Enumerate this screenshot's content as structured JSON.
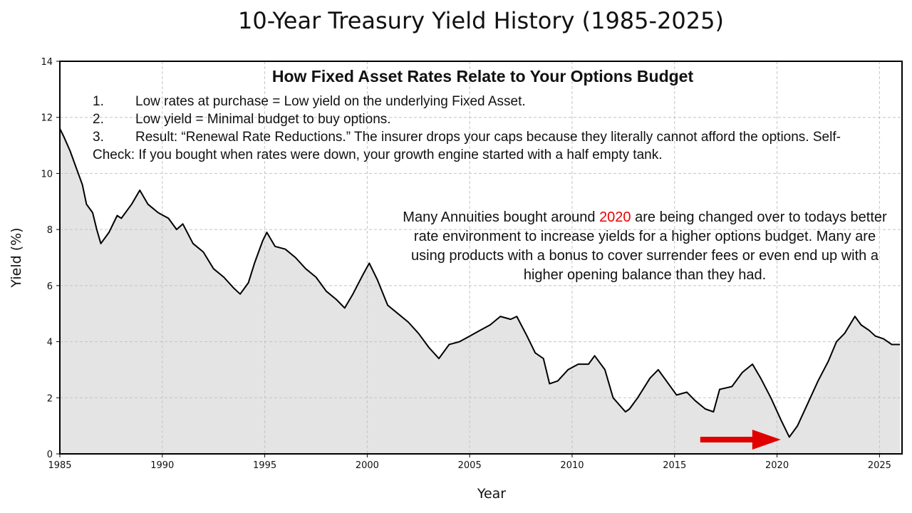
{
  "chart_data": {
    "type": "area",
    "title": "10-Year Treasury Yield History (1985-2025)",
    "xlabel": "Year",
    "ylabel": "Yield (%)",
    "xlim": [
      1985,
      2026.1
    ],
    "ylim": [
      0,
      14
    ],
    "xticks": [
      1985,
      1990,
      1995,
      2000,
      2005,
      2010,
      2015,
      2020,
      2025
    ],
    "yticks": [
      0,
      2,
      4,
      6,
      8,
      10,
      12,
      14
    ],
    "grid": true,
    "series": [
      {
        "name": "10-Year Treasury Yield",
        "line_color": "#000000",
        "fill_color": "#e4e4e4",
        "points": [
          [
            1985.0,
            11.6
          ],
          [
            1985.2,
            11.3
          ],
          [
            1985.5,
            10.8
          ],
          [
            1985.8,
            10.2
          ],
          [
            1986.1,
            9.6
          ],
          [
            1986.3,
            8.9
          ],
          [
            1986.6,
            8.6
          ],
          [
            1986.8,
            8.0
          ],
          [
            1987.0,
            7.5
          ],
          [
            1987.4,
            7.9
          ],
          [
            1987.8,
            8.5
          ],
          [
            1988.0,
            8.4
          ],
          [
            1988.5,
            8.9
          ],
          [
            1988.9,
            9.4
          ],
          [
            1989.3,
            8.9
          ],
          [
            1989.8,
            8.6
          ],
          [
            1990.3,
            8.4
          ],
          [
            1990.7,
            8.0
          ],
          [
            1991.0,
            8.2
          ],
          [
            1991.5,
            7.5
          ],
          [
            1992.0,
            7.2
          ],
          [
            1992.5,
            6.6
          ],
          [
            1993.0,
            6.3
          ],
          [
            1993.5,
            5.9
          ],
          [
            1993.8,
            5.7
          ],
          [
            1994.2,
            6.1
          ],
          [
            1994.5,
            6.8
          ],
          [
            1994.9,
            7.6
          ],
          [
            1995.1,
            7.9
          ],
          [
            1995.5,
            7.4
          ],
          [
            1996.0,
            7.3
          ],
          [
            1996.5,
            7.0
          ],
          [
            1997.0,
            6.6
          ],
          [
            1997.5,
            6.3
          ],
          [
            1998.0,
            5.8
          ],
          [
            1998.5,
            5.5
          ],
          [
            1998.9,
            5.2
          ],
          [
            1999.3,
            5.7
          ],
          [
            1999.8,
            6.4
          ],
          [
            2000.1,
            6.8
          ],
          [
            2000.5,
            6.2
          ],
          [
            2001.0,
            5.3
          ],
          [
            2001.5,
            5.0
          ],
          [
            2002.0,
            4.7
          ],
          [
            2002.5,
            4.3
          ],
          [
            2003.0,
            3.8
          ],
          [
            2003.5,
            3.4
          ],
          [
            2004.0,
            3.9
          ],
          [
            2004.5,
            4.0
          ],
          [
            2005.0,
            4.2
          ],
          [
            2005.5,
            4.4
          ],
          [
            2006.0,
            4.6
          ],
          [
            2006.5,
            4.9
          ],
          [
            2007.0,
            4.8
          ],
          [
            2007.3,
            4.9
          ],
          [
            2007.8,
            4.2
          ],
          [
            2008.2,
            3.6
          ],
          [
            2008.6,
            3.4
          ],
          [
            2008.9,
            2.5
          ],
          [
            2009.3,
            2.6
          ],
          [
            2009.8,
            3.0
          ],
          [
            2010.3,
            3.2
          ],
          [
            2010.8,
            3.2
          ],
          [
            2011.1,
            3.5
          ],
          [
            2011.6,
            3.0
          ],
          [
            2012.0,
            2.0
          ],
          [
            2012.6,
            1.5
          ],
          [
            2012.8,
            1.6
          ],
          [
            2013.2,
            2.0
          ],
          [
            2013.8,
            2.7
          ],
          [
            2014.2,
            3.0
          ],
          [
            2014.6,
            2.6
          ],
          [
            2015.1,
            2.1
          ],
          [
            2015.6,
            2.2
          ],
          [
            2016.0,
            1.9
          ],
          [
            2016.5,
            1.6
          ],
          [
            2016.9,
            1.5
          ],
          [
            2017.2,
            2.3
          ],
          [
            2017.8,
            2.4
          ],
          [
            2018.3,
            2.9
          ],
          [
            2018.8,
            3.2
          ],
          [
            2019.2,
            2.7
          ],
          [
            2019.7,
            2.0
          ],
          [
            2020.2,
            1.2
          ],
          [
            2020.6,
            0.6
          ],
          [
            2021.0,
            1.0
          ],
          [
            2021.5,
            1.8
          ],
          [
            2022.0,
            2.6
          ],
          [
            2022.5,
            3.3
          ],
          [
            2022.9,
            4.0
          ],
          [
            2023.3,
            4.3
          ],
          [
            2023.8,
            4.9
          ],
          [
            2024.1,
            4.6
          ],
          [
            2024.5,
            4.4
          ],
          [
            2024.8,
            4.2
          ],
          [
            2025.2,
            4.1
          ],
          [
            2025.6,
            3.9
          ],
          [
            2026.0,
            3.9
          ]
        ]
      }
    ],
    "annotations": {
      "heading": "How Fixed Asset Rates Relate to Your Options Budget",
      "list": [
        {
          "num": "1.",
          "text": "Low rates at purchase = Low yield on the underlying Fixed Asset."
        },
        {
          "num": "2.",
          "text": "Low yield = Minimal budget to buy options."
        },
        {
          "num": "3.",
          "text": "Result: “Renewal Rate Reductions.” The insurer drops your caps because they literally cannot afford the options. Self-Check: If you bought when rates were down, your growth engine started with a half empty tank."
        }
      ],
      "callout_before": "Many Annuities bought around ",
      "callout_highlight": "2020",
      "callout_after": " are being changed over to todays better rate environment to increase yields for a higher options budget. Many are using products with a bonus to cover surrender fees or even end up with a higher opening balance than they had.",
      "arrow_target_year": 2020.6,
      "arrow_color": "#e00000"
    }
  }
}
